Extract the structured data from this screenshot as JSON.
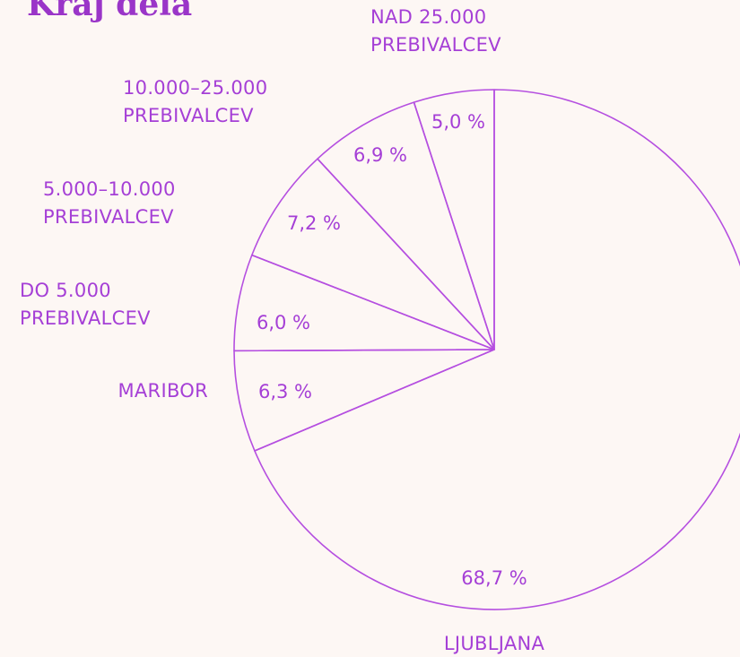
{
  "chart_data": {
    "type": "pie",
    "title": "Kraj dela",
    "categories": [
      "LJUBLJANA",
      "MARIBOR",
      "DO 5.000\nPREBIVALCEV",
      "5.000–10.000\nPREBIVALCEV",
      "10.000–25.000\nPREBIVALCEV",
      "NAD 25.000\nPREBIVALCEV"
    ],
    "values": [
      68.7,
      6.3,
      6.0,
      7.2,
      6.9,
      5.0
    ],
    "value_labels": [
      "68,7 %",
      "6,3 %",
      "6,0 %",
      "7,2 %",
      "6,9 %",
      "5,0 %"
    ],
    "color": "#b54fe0"
  }
}
